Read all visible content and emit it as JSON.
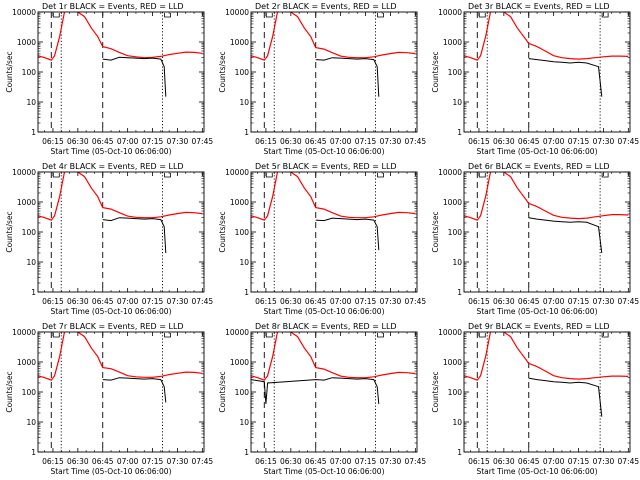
{
  "chart_data": [
    {
      "type": "line",
      "title": "Det 1r BLACK = Events, RED = LLD",
      "xlabel": "Start Time (05-Oct-10 06:06:00)",
      "ylabel": "Counts/sec",
      "yscale": "log",
      "ylim": [
        1,
        10000
      ],
      "xlim": [
        "06:06",
        "07:46"
      ],
      "xticks": [
        "06:15",
        "06:30",
        "06:45",
        "07:00",
        "07:15",
        "07:30",
        "07:45"
      ],
      "yticks": [
        "1",
        "10",
        "100",
        "1000",
        "10000"
      ],
      "events": {
        "x": [
          "06:45",
          "06:50",
          "06:55",
          "07:00",
          "07:05",
          "07:10",
          "07:15",
          "07:20",
          "07:22",
          "07:23"
        ],
        "y": [
          270,
          250,
          310,
          300,
          290,
          280,
          290,
          270,
          150,
          15
        ]
      },
      "lld": {
        "x": [
          "06:06",
          "06:10",
          "06:14",
          "06:16",
          "06:19",
          "06:22",
          "06:26",
          "06:30",
          "06:34",
          "06:38",
          "06:42",
          "06:45",
          "06:50",
          "06:55",
          "07:00",
          "07:05",
          "07:10",
          "07:15",
          "07:20",
          "07:25",
          "07:30",
          "07:35",
          "07:40",
          "07:45"
        ],
        "y": [
          350,
          300,
          250,
          350,
          1500,
          12000,
          13000,
          10000,
          7000,
          3000,
          1500,
          700,
          600,
          450,
          350,
          320,
          300,
          310,
          330,
          380,
          420,
          460,
          450,
          420
        ]
      },
      "event_lines_dashed": [
        "06:14",
        "06:45"
      ],
      "event_lines_dotted": [
        "06:20",
        "07:21"
      ]
    },
    {
      "type": "line",
      "title": "Det 2r BLACK = Events, RED = LLD",
      "xlabel": "Start Time (05-Oct-10 06:06:00)",
      "ylabel": "Counts/sec",
      "yscale": "log",
      "ylim": [
        1,
        10000
      ],
      "xlim": [
        "06:06",
        "07:46"
      ],
      "xticks": [
        "06:15",
        "06:30",
        "06:45",
        "07:00",
        "07:15",
        "07:30",
        "07:45"
      ],
      "yticks": [
        "1",
        "10",
        "100",
        "1000",
        "10000"
      ],
      "events": {
        "x": [
          "06:45",
          "06:50",
          "06:55",
          "07:00",
          "07:05",
          "07:10",
          "07:15",
          "07:20",
          "07:22",
          "07:23"
        ],
        "y": [
          260,
          250,
          300,
          290,
          280,
          270,
          280,
          260,
          150,
          15
        ]
      },
      "lld": {
        "x": [
          "06:06",
          "06:10",
          "06:14",
          "06:16",
          "06:19",
          "06:22",
          "06:26",
          "06:30",
          "06:34",
          "06:38",
          "06:42",
          "06:45",
          "06:50",
          "06:55",
          "07:00",
          "07:05",
          "07:10",
          "07:15",
          "07:20",
          "07:25",
          "07:30",
          "07:35",
          "07:40",
          "07:45"
        ],
        "y": [
          350,
          300,
          250,
          350,
          1500,
          12000,
          13000,
          10000,
          7000,
          3000,
          1500,
          650,
          580,
          440,
          340,
          310,
          300,
          300,
          320,
          370,
          410,
          450,
          440,
          410
        ]
      },
      "event_lines_dashed": [
        "06:14",
        "06:45"
      ],
      "event_lines_dotted": [
        "06:20",
        "07:21"
      ]
    },
    {
      "type": "line",
      "title": "Det 3r BLACK = Events, RED = LLD",
      "xlabel": "Start Time (05-Oct-10 06:06:00)",
      "ylabel": "Counts/sec",
      "yscale": "log",
      "ylim": [
        1,
        10000
      ],
      "xlim": [
        "06:06",
        "07:46"
      ],
      "xticks": [
        "06:15",
        "06:30",
        "06:45",
        "07:00",
        "07:15",
        "07:30",
        "07:45"
      ],
      "yticks": [
        "1",
        "10",
        "100",
        "1000",
        "10000"
      ],
      "events": {
        "x": [
          "06:45",
          "06:50",
          "06:55",
          "07:00",
          "07:05",
          "07:10",
          "07:15",
          "07:20",
          "07:27",
          "07:29"
        ],
        "y": [
          280,
          260,
          240,
          220,
          210,
          200,
          210,
          200,
          150,
          15
        ]
      },
      "lld": {
        "x": [
          "06:06",
          "06:10",
          "06:14",
          "06:16",
          "06:19",
          "06:22",
          "06:26",
          "06:30",
          "06:34",
          "06:38",
          "06:42",
          "06:45",
          "06:50",
          "06:55",
          "07:00",
          "07:05",
          "07:10",
          "07:15",
          "07:20",
          "07:25",
          "07:30",
          "07:35",
          "07:40",
          "07:45"
        ],
        "y": [
          350,
          300,
          250,
          350,
          1500,
          12000,
          13000,
          10000,
          7000,
          3000,
          1500,
          900,
          700,
          500,
          350,
          300,
          280,
          270,
          280,
          300,
          320,
          340,
          340,
          330
        ]
      },
      "event_lines_dashed": [
        "06:14",
        "06:45"
      ],
      "event_lines_dotted": [
        "06:20",
        "07:28"
      ]
    },
    {
      "type": "line",
      "title": "Det 4r BLACK = Events, RED = LLD",
      "xlabel": "Start Time (05-Oct-10 06:06:00)",
      "ylabel": "Counts/sec",
      "yscale": "log",
      "ylim": [
        1,
        10000
      ],
      "xlim": [
        "06:06",
        "07:46"
      ],
      "xticks": [
        "06:15",
        "06:30",
        "06:45",
        "07:00",
        "07:15",
        "07:30",
        "07:45"
      ],
      "yticks": [
        "1",
        "10",
        "100",
        "1000",
        "10000"
      ],
      "events": {
        "x": [
          "06:45",
          "06:50",
          "06:55",
          "07:00",
          "07:05",
          "07:10",
          "07:15",
          "07:20",
          "07:22",
          "07:23"
        ],
        "y": [
          260,
          240,
          300,
          290,
          280,
          270,
          280,
          260,
          150,
          20
        ]
      },
      "lld": {
        "x": [
          "06:06",
          "06:10",
          "06:14",
          "06:16",
          "06:19",
          "06:22",
          "06:26",
          "06:30",
          "06:34",
          "06:38",
          "06:42",
          "06:45",
          "06:50",
          "06:55",
          "07:00",
          "07:05",
          "07:10",
          "07:15",
          "07:20",
          "07:25",
          "07:30",
          "07:35",
          "07:40",
          "07:45"
        ],
        "y": [
          350,
          300,
          250,
          350,
          1500,
          12000,
          13000,
          10000,
          7000,
          3000,
          1500,
          650,
          580,
          440,
          340,
          310,
          300,
          300,
          320,
          370,
          410,
          450,
          440,
          410
        ]
      },
      "event_lines_dashed": [
        "06:14",
        "06:45"
      ],
      "event_lines_dotted": [
        "06:20",
        "07:21"
      ]
    },
    {
      "type": "line",
      "title": "Det 5r BLACK = Events, RED = LLD",
      "xlabel": "Start Time (05-Oct-10 06:06:00)",
      "ylabel": "Counts/sec",
      "yscale": "log",
      "ylim": [
        1,
        10000
      ],
      "xlim": [
        "06:06",
        "07:46"
      ],
      "xticks": [
        "06:15",
        "06:30",
        "06:45",
        "07:00",
        "07:15",
        "07:30",
        "07:45"
      ],
      "yticks": [
        "1",
        "10",
        "100",
        "1000",
        "10000"
      ],
      "events": {
        "x": [
          "06:45",
          "06:50",
          "06:55",
          "07:00",
          "07:05",
          "07:10",
          "07:15",
          "07:20",
          "07:22",
          "07:23"
        ],
        "y": [
          250,
          240,
          290,
          280,
          270,
          260,
          270,
          250,
          150,
          25
        ]
      },
      "lld": {
        "x": [
          "06:06",
          "06:10",
          "06:14",
          "06:16",
          "06:19",
          "06:22",
          "06:26",
          "06:30",
          "06:34",
          "06:38",
          "06:42",
          "06:45",
          "06:50",
          "06:55",
          "07:00",
          "07:05",
          "07:10",
          "07:15",
          "07:20",
          "07:25",
          "07:30",
          "07:35",
          "07:40",
          "07:45"
        ],
        "y": [
          350,
          300,
          250,
          350,
          1500,
          12000,
          13000,
          10000,
          7000,
          3000,
          1500,
          650,
          580,
          440,
          340,
          310,
          300,
          300,
          320,
          370,
          410,
          450,
          440,
          410
        ]
      },
      "event_lines_dashed": [
        "06:14",
        "06:45"
      ],
      "event_lines_dotted": [
        "06:20",
        "07:21"
      ]
    },
    {
      "type": "line",
      "title": "Det 6r BLACK = Events, RED = LLD",
      "xlabel": "Start Time (05-Oct-10 06:06:00)",
      "ylabel": "Counts/sec",
      "yscale": "log",
      "ylim": [
        1,
        10000
      ],
      "xlim": [
        "06:06",
        "07:46"
      ],
      "xticks": [
        "06:15",
        "06:30",
        "06:45",
        "07:00",
        "07:15",
        "07:30",
        "07:45"
      ],
      "yticks": [
        "1",
        "10",
        "100",
        "1000",
        "10000"
      ],
      "events": {
        "x": [
          "06:45",
          "06:50",
          "06:55",
          "07:00",
          "07:05",
          "07:10",
          "07:15",
          "07:20",
          "07:27",
          "07:29"
        ],
        "y": [
          300,
          270,
          250,
          230,
          220,
          210,
          220,
          210,
          150,
          20
        ]
      },
      "lld": {
        "x": [
          "06:06",
          "06:10",
          "06:14",
          "06:16",
          "06:19",
          "06:22",
          "06:26",
          "06:30",
          "06:34",
          "06:38",
          "06:42",
          "06:45",
          "06:50",
          "06:55",
          "07:00",
          "07:05",
          "07:10",
          "07:15",
          "07:20",
          "07:25",
          "07:30",
          "07:35",
          "07:40",
          "07:45"
        ],
        "y": [
          350,
          300,
          250,
          350,
          1500,
          12000,
          13000,
          10000,
          7000,
          3000,
          1500,
          900,
          700,
          500,
          360,
          310,
          290,
          280,
          290,
          320,
          350,
          380,
          380,
          370
        ]
      },
      "event_lines_dashed": [
        "06:14",
        "06:45"
      ],
      "event_lines_dotted": [
        "06:20",
        "07:28"
      ]
    },
    {
      "type": "line",
      "title": "Det 7r BLACK = Events, RED = LLD",
      "xlabel": "Start Time (05-Oct-10 06:06:00)",
      "ylabel": "Counts/sec",
      "yscale": "log",
      "ylim": [
        1,
        10000
      ],
      "xlim": [
        "06:06",
        "07:46"
      ],
      "xticks": [
        "06:15",
        "06:30",
        "06:45",
        "07:00",
        "07:15",
        "07:30",
        "07:45"
      ],
      "yticks": [
        "1",
        "10",
        "100",
        "1000",
        "10000"
      ],
      "events": {
        "x": [
          "06:45",
          "06:50",
          "06:55",
          "07:00",
          "07:05",
          "07:10",
          "07:15",
          "07:20",
          "07:22",
          "07:23"
        ],
        "y": [
          260,
          250,
          300,
          290,
          280,
          270,
          280,
          260,
          150,
          45
        ]
      },
      "lld": {
        "x": [
          "06:06",
          "06:10",
          "06:14",
          "06:16",
          "06:19",
          "06:22",
          "06:26",
          "06:30",
          "06:34",
          "06:38",
          "06:42",
          "06:45",
          "06:50",
          "06:55",
          "07:00",
          "07:05",
          "07:10",
          "07:15",
          "07:20",
          "07:25",
          "07:30",
          "07:35",
          "07:40",
          "07:45"
        ],
        "y": [
          350,
          300,
          250,
          350,
          1500,
          12000,
          13000,
          10000,
          7000,
          3000,
          1500,
          650,
          600,
          460,
          350,
          320,
          310,
          310,
          330,
          380,
          420,
          460,
          450,
          420
        ]
      },
      "event_lines_dashed": [
        "06:14",
        "06:45"
      ],
      "event_lines_dotted": [
        "06:20",
        "07:21"
      ]
    },
    {
      "type": "line",
      "title": "Det 8r BLACK = Events, RED = LLD",
      "xlabel": "Start Time (05-Oct-10 06:06:00)",
      "ylabel": "Counts/sec",
      "yscale": "log",
      "ylim": [
        1,
        10000
      ],
      "xlim": [
        "06:06",
        "07:46"
      ],
      "xticks": [
        "06:15",
        "06:30",
        "06:45",
        "07:00",
        "07:15",
        "07:30",
        "07:45"
      ],
      "yticks": [
        "1",
        "10",
        "100",
        "1000",
        "10000"
      ],
      "events": {
        "x": [
          "06:06",
          "06:10",
          "06:14",
          "06:15",
          "06:16",
          "06:45",
          "06:50",
          "06:55",
          "07:00",
          "07:05",
          "07:10",
          "07:15",
          "07:20",
          "07:22",
          "07:23"
        ],
        "y": [
          260,
          240,
          220,
          40,
          200,
          260,
          250,
          300,
          290,
          280,
          270,
          280,
          260,
          150,
          40
        ]
      },
      "lld": {
        "x": [
          "06:06",
          "06:10",
          "06:14",
          "06:16",
          "06:19",
          "06:22",
          "06:26",
          "06:30",
          "06:34",
          "06:38",
          "06:42",
          "06:45",
          "06:50",
          "06:55",
          "07:00",
          "07:05",
          "07:10",
          "07:15",
          "07:20",
          "07:25",
          "07:30",
          "07:35",
          "07:40",
          "07:45"
        ],
        "y": [
          350,
          300,
          250,
          350,
          1500,
          12000,
          13000,
          10000,
          7000,
          3000,
          1500,
          650,
          580,
          440,
          340,
          310,
          300,
          300,
          320,
          370,
          410,
          450,
          440,
          410
        ]
      },
      "event_lines_dashed": [
        "06:14",
        "06:45"
      ],
      "event_lines_dotted": [
        "06:20",
        "07:21"
      ]
    },
    {
      "type": "line",
      "title": "Det 9r BLACK = Events, RED = LLD",
      "xlabel": "Start Time (05-Oct-10 06:06:00)",
      "ylabel": "Counts/sec",
      "yscale": "log",
      "ylim": [
        1,
        10000
      ],
      "xlim": [
        "06:06",
        "07:46"
      ],
      "xticks": [
        "06:15",
        "06:30",
        "06:45",
        "07:00",
        "07:15",
        "07:30",
        "07:45"
      ],
      "yticks": [
        "1",
        "10",
        "100",
        "1000",
        "10000"
      ],
      "events": {
        "x": [
          "06:45",
          "06:50",
          "06:55",
          "07:00",
          "07:05",
          "07:10",
          "07:15",
          "07:20",
          "07:27",
          "07:29"
        ],
        "y": [
          290,
          260,
          240,
          220,
          210,
          200,
          210,
          200,
          150,
          15
        ]
      },
      "lld": {
        "x": [
          "06:06",
          "06:10",
          "06:14",
          "06:16",
          "06:19",
          "06:22",
          "06:26",
          "06:30",
          "06:34",
          "06:38",
          "06:42",
          "06:45",
          "06:50",
          "06:55",
          "07:00",
          "07:05",
          "07:10",
          "07:15",
          "07:20",
          "07:25",
          "07:30",
          "07:35",
          "07:40",
          "07:45"
        ],
        "y": [
          350,
          300,
          250,
          350,
          1500,
          12000,
          13000,
          10000,
          7000,
          3000,
          1500,
          900,
          700,
          500,
          350,
          300,
          280,
          270,
          280,
          300,
          320,
          340,
          340,
          330
        ]
      },
      "event_lines_dashed": [
        "06:14",
        "06:45"
      ],
      "event_lines_dotted": [
        "06:20",
        "07:28"
      ]
    }
  ],
  "colors": {
    "events": "#000000",
    "lld": "#ff0000",
    "axes": "#000000"
  }
}
